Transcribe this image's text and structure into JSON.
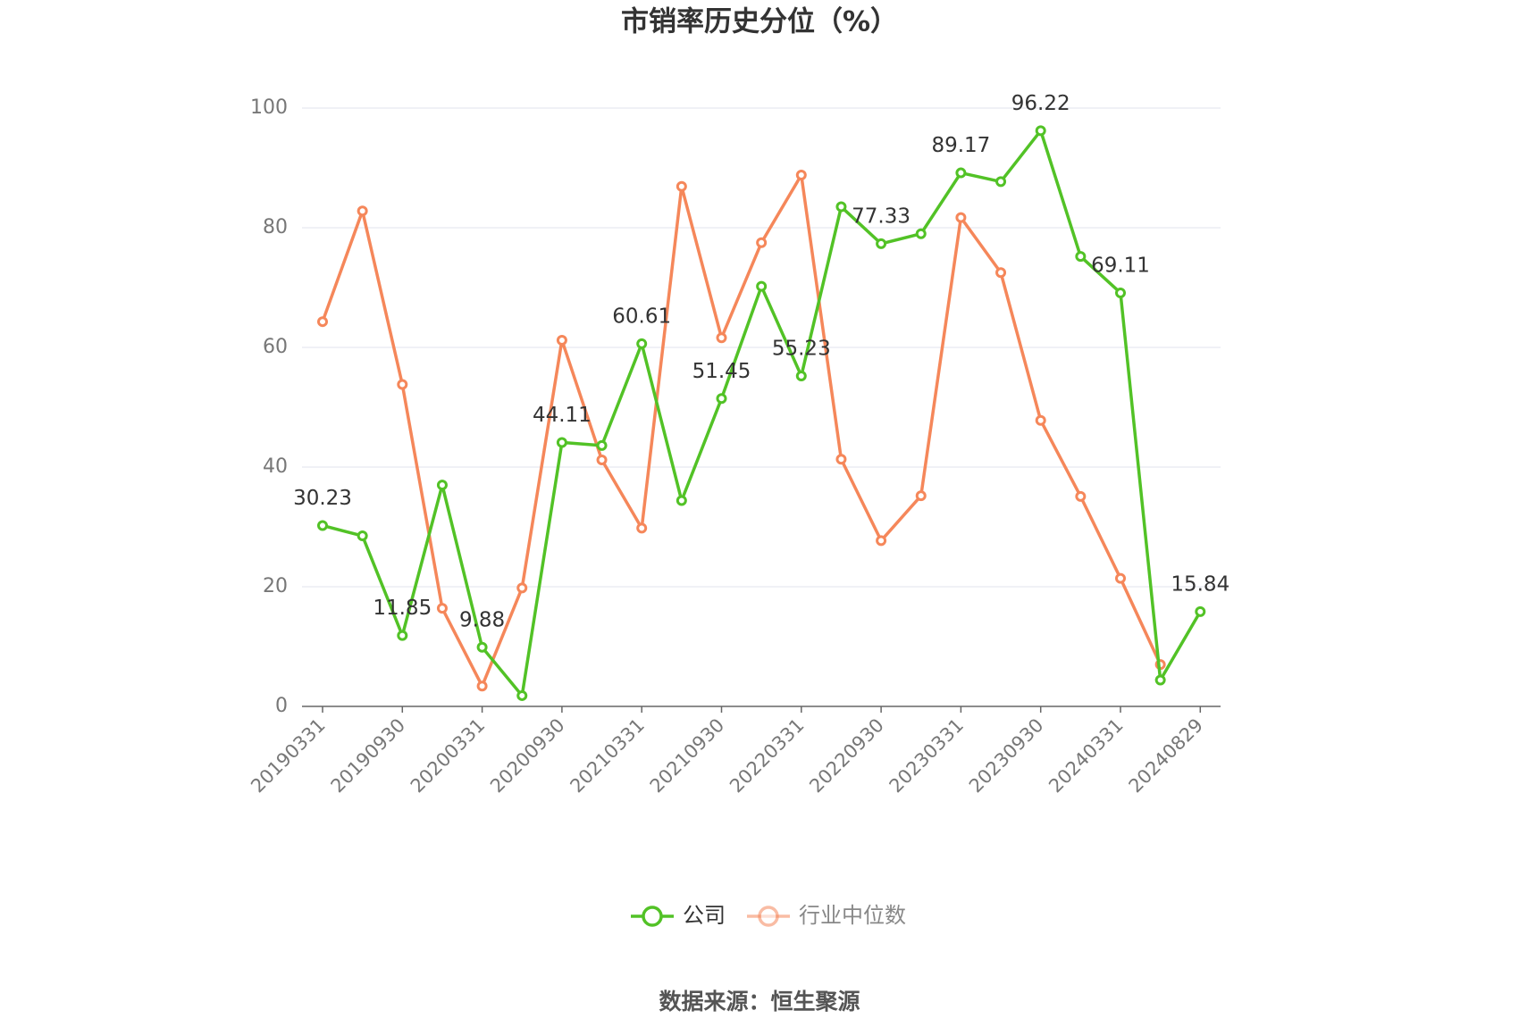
{
  "chart_data": {
    "type": "line",
    "title": "市销率历史分位（%）",
    "source": "数据来源：恒生聚源",
    "categories": [
      "20190331",
      null,
      "20190930",
      null,
      "20200331",
      null,
      "20200930",
      null,
      "20210331",
      null,
      "20210930",
      null,
      "20220331",
      null,
      "20220930",
      null,
      "20230331",
      null,
      "20230930",
      null,
      "20240331",
      null,
      "20240829"
    ],
    "series": [
      {
        "name": "公司",
        "color": "#52c226",
        "values": [
          30.23,
          28.5,
          11.85,
          37,
          9.88,
          1.8,
          44.11,
          43.6,
          60.61,
          34.4,
          51.45,
          70.2,
          55.23,
          83.5,
          77.33,
          79,
          89.17,
          87.7,
          96.22,
          75.2,
          69.11,
          4.4,
          15.84
        ],
        "value_labels": [
          "30.23",
          null,
          "11.85",
          null,
          "9.88",
          null,
          "44.11",
          null,
          "60.61",
          null,
          "51.45",
          null,
          "55.23",
          null,
          "77.33",
          null,
          "89.17",
          null,
          "96.22",
          null,
          "69.11",
          null,
          "15.84"
        ]
      },
      {
        "name": "行业中位数",
        "color": "#f5875a",
        "values": [
          64.3,
          82.8,
          53.8,
          16.4,
          3.4,
          19.8,
          61.2,
          41.2,
          29.8,
          86.9,
          61.6,
          77.5,
          88.8,
          41.3,
          27.7,
          35.2,
          81.7,
          72.5,
          47.8,
          35.1,
          21.4,
          7.0,
          null
        ]
      }
    ],
    "ylim": [
      0,
      100
    ],
    "yticks": [
      0,
      20,
      40,
      60,
      80,
      100
    ],
    "grid": true
  }
}
